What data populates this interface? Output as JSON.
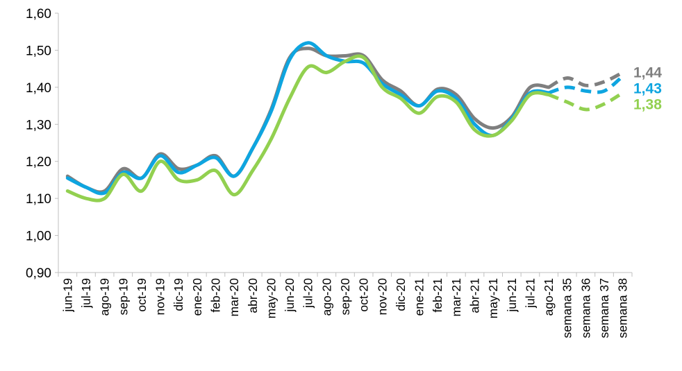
{
  "chart_data": {
    "type": "line",
    "title": "",
    "xlabel": "",
    "ylabel": "",
    "ylim": [
      0.9,
      1.6
    ],
    "y_ticks": [
      "0,90",
      "1,00",
      "1,10",
      "1,20",
      "1,30",
      "1,40",
      "1,50",
      "1,60"
    ],
    "grid": false,
    "legend": "none",
    "categories": [
      "jun-19",
      "jul-19",
      "ago-19",
      "sep-19",
      "oct-19",
      "nov-19",
      "dic-19",
      "ene-20",
      "feb-20",
      "mar-20",
      "abr-20",
      "may-20",
      "jun-20",
      "jul-20",
      "ago-20",
      "sep-20",
      "oct-20",
      "nov-20",
      "dic-20",
      "ene-21",
      "feb-21",
      "mar-21",
      "abr-21",
      "may-21",
      "jun-21",
      "jul-21",
      "ago-21",
      "semana 35",
      "semana 36",
      "semana 37",
      "semana 38"
    ],
    "solid_until_index": 26,
    "series": [
      {
        "color": "#7f7f7f",
        "end_label": "1,44",
        "values": [
          1.16,
          1.13,
          1.12,
          1.18,
          1.155,
          1.22,
          1.18,
          1.19,
          1.215,
          1.16,
          1.235,
          1.34,
          1.48,
          1.505,
          1.485,
          1.485,
          1.485,
          1.42,
          1.39,
          1.35,
          1.395,
          1.38,
          1.315,
          1.29,
          1.32,
          1.4,
          1.4,
          1.425,
          1.405,
          1.415,
          1.44
        ]
      },
      {
        "color": "#0ea5e0",
        "end_label": "1,43",
        "values": [
          1.155,
          1.13,
          1.115,
          1.17,
          1.155,
          1.215,
          1.17,
          1.19,
          1.21,
          1.16,
          1.235,
          1.335,
          1.475,
          1.52,
          1.485,
          1.47,
          1.465,
          1.41,
          1.38,
          1.35,
          1.39,
          1.37,
          1.3,
          1.27,
          1.315,
          1.385,
          1.385,
          1.4,
          1.39,
          1.39,
          1.43
        ]
      },
      {
        "color": "#92d050",
        "end_label": "1,38",
        "values": [
          1.12,
          1.1,
          1.1,
          1.165,
          1.12,
          1.2,
          1.15,
          1.15,
          1.175,
          1.11,
          1.175,
          1.26,
          1.37,
          1.455,
          1.44,
          1.47,
          1.48,
          1.4,
          1.37,
          1.33,
          1.375,
          1.36,
          1.285,
          1.27,
          1.31,
          1.38,
          1.38,
          1.36,
          1.34,
          1.355,
          1.385
        ]
      }
    ]
  }
}
